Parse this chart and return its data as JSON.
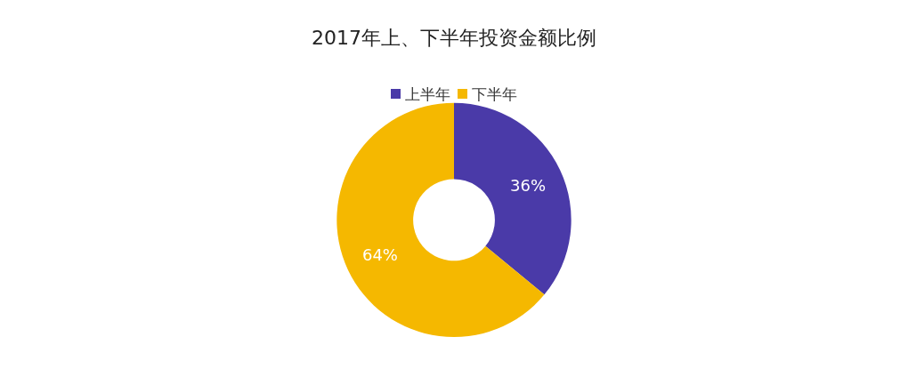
{
  "chart_data": {
    "type": "donut",
    "title": "2017年上、下半年投资金额比例",
    "categories": [
      "上半年",
      "下半年"
    ],
    "values": [
      36,
      64
    ],
    "colors": [
      "#4a3aa8",
      "#f5b800"
    ],
    "value_labels": [
      "36%",
      "64%"
    ],
    "legend": "top"
  }
}
